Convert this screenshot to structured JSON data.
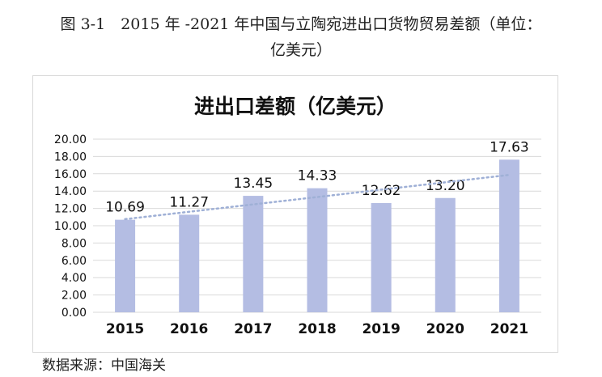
{
  "caption": {
    "line1": "图 3-1　2015 年 -2021 年中国与立陶宛进出口货物贸易差额（单位：",
    "line2": "亿美元）"
  },
  "source": "数据来源：中国海关",
  "chart_data": {
    "type": "bar",
    "title": "进出口差额（亿美元）",
    "categories": [
      "2015",
      "2016",
      "2017",
      "2018",
      "2019",
      "2020",
      "2021"
    ],
    "values": [
      10.69,
      11.27,
      13.45,
      14.33,
      12.62,
      13.2,
      17.63
    ],
    "data_labels": [
      "10.69",
      "11.27",
      "13.45",
      "14.33",
      "12.62",
      "13.20",
      "17.63"
    ],
    "y_ticks": [
      "0.00",
      "2.00",
      "4.00",
      "6.00",
      "8.00",
      "10.00",
      "12.00",
      "14.00",
      "16.00",
      "18.00",
      "20.00"
    ],
    "ylim": [
      0,
      20
    ],
    "trendline": "linear",
    "grid": true,
    "bar_color": "#b4bde3",
    "trend_color": "#9fb0d6",
    "grid_color": "#d9d9d9"
  }
}
